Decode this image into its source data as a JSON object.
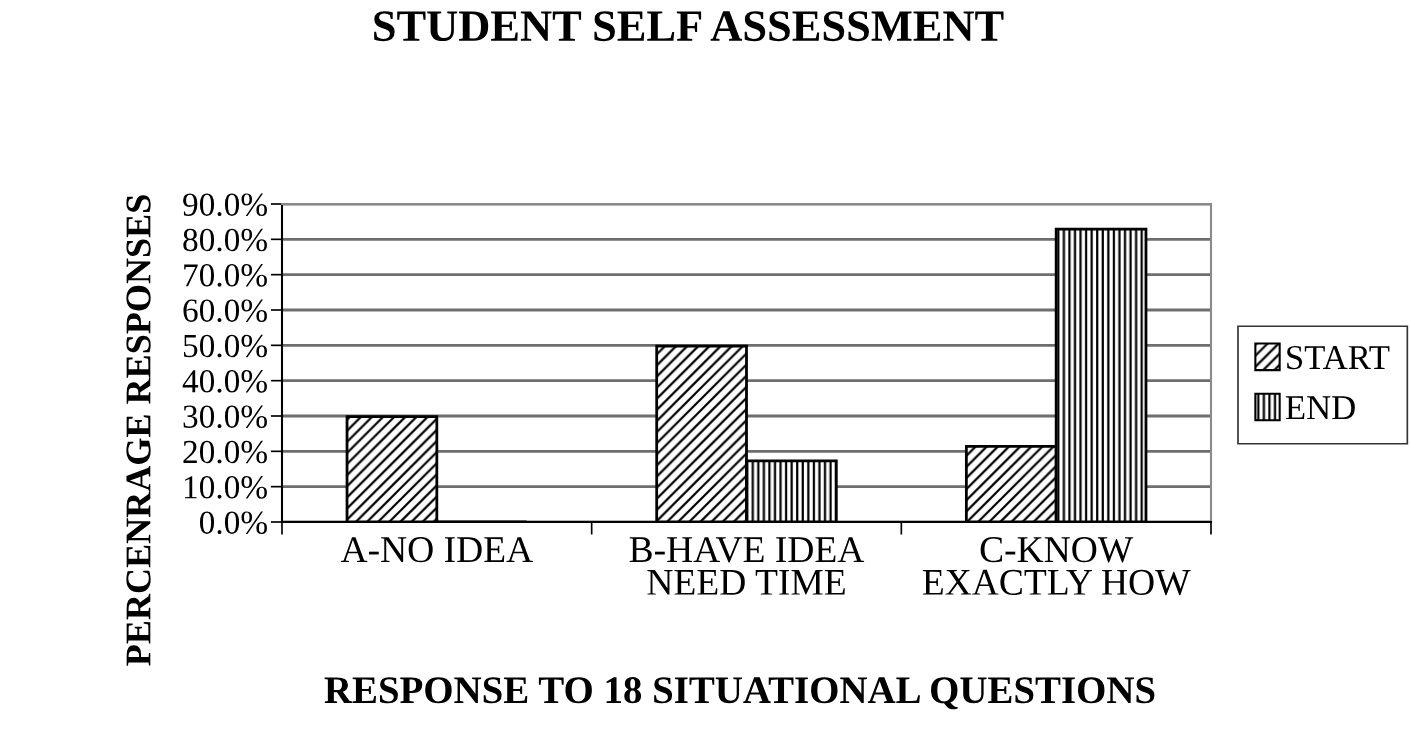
{
  "chart_data": {
    "type": "bar",
    "title": "STUDENT SELF ASSESSMENT",
    "xlabel": "RESPONSE TO 18 SITUATIONAL QUESTIONS",
    "ylabel": "PERCENRAGE RESPONSES",
    "categories": [
      "A-NO IDEA",
      "B-HAVE IDEA\nNEED TIME",
      "C-KNOW\nEXACTLY HOW"
    ],
    "series": [
      {
        "name": "START",
        "color": "#000000",
        "values": [
          29.8,
          49.8,
          21.4
        ]
      },
      {
        "name": "END",
        "color": "#000000",
        "values": [
          0,
          17.3,
          82.9
        ]
      }
    ],
    "ylim": [
      0,
      90
    ],
    "yticks": [
      {
        "value": 0,
        "label": "0.0%"
      },
      {
        "value": 10,
        "label": "10.0%"
      },
      {
        "value": 20,
        "label": "20.0%"
      },
      {
        "value": 30,
        "label": "30.0%"
      },
      {
        "value": 40,
        "label": "40.0%"
      },
      {
        "value": 50,
        "label": "50.0%"
      },
      {
        "value": 60,
        "label": "60.0%"
      },
      {
        "value": 70,
        "label": "70.0%"
      },
      {
        "value": 80,
        "label": "80.0%"
      },
      {
        "value": 90,
        "label": "90.0%"
      }
    ],
    "grid": "y",
    "legend": "right"
  }
}
